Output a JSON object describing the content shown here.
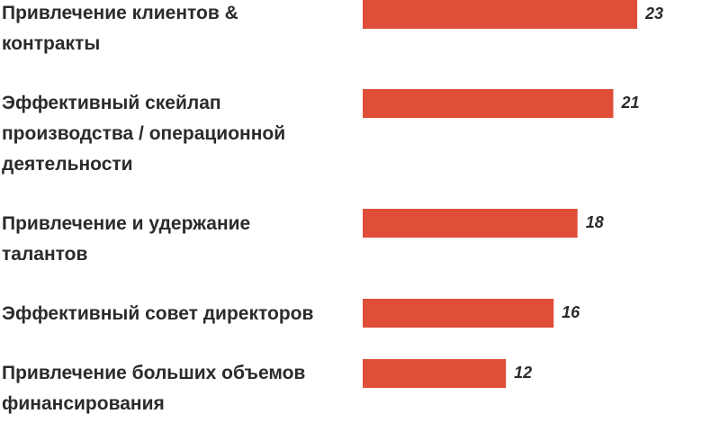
{
  "chart_data": {
    "type": "bar",
    "orientation": "horizontal",
    "categories": [
      [
        "Привлечение клиентов &",
        "контракты"
      ],
      [
        "Эффективный скейлап",
        "производства / операционной",
        "деятельности"
      ],
      [
        "Привлечение и удержание",
        "талантов"
      ],
      [
        "Эффективный совет директоров"
      ],
      [
        "Привлечение больших объемов",
        "финансирования"
      ]
    ],
    "values": [
      23,
      21,
      18,
      16,
      12
    ],
    "value_labels": [
      "23",
      "21",
      "18",
      "16",
      "12"
    ],
    "xlim": [
      0,
      23
    ],
    "grid": false,
    "legend": "none",
    "bar_color": "#e04e3a",
    "text_color": "#2b2b2b"
  }
}
